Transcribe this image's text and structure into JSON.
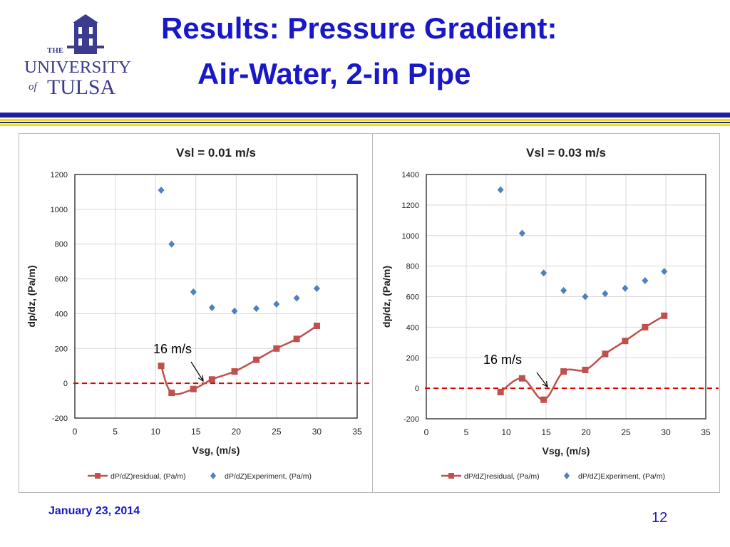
{
  "header": {
    "title_line1": "Results: Pressure Gradient:",
    "title_line2": "Air-Water, 2-in Pipe",
    "logo_text": {
      "the": "THE",
      "university": "UNIVERSITY",
      "of": "of",
      "tulsa": "TULSA"
    }
  },
  "colors": {
    "title": "#1818c8",
    "residual_series": "#c0504d",
    "experiment_series": "#4f81bd",
    "zero_line": "#e00000",
    "logo": "#3b3b8f",
    "rule_blue": "#2020a0",
    "rule_gold": "#f2e600"
  },
  "chart_data": [
    {
      "type": "scatter",
      "title": "Vsl = 0.01 m/s",
      "xlabel": "Vsg, (m/s)",
      "ylabel": "dp/dz, (Pa/m)",
      "xlim": [
        0,
        35
      ],
      "ylim": [
        -200,
        1200
      ],
      "xticks": [
        0,
        5,
        10,
        15,
        20,
        25,
        30,
        35
      ],
      "yticks": [
        -200,
        0,
        200,
        400,
        600,
        800,
        1000,
        1200
      ],
      "grid": true,
      "legend_position": "bottom",
      "series": [
        {
          "name": "dP/dZ)residual, (Pa/m)",
          "style": "line-square",
          "x": [
            10.7,
            12.0,
            14.7,
            17.0,
            19.8,
            22.5,
            25.0,
            27.5,
            30.0
          ],
          "y": [
            100,
            -55,
            -33,
            22,
            68,
            135,
            200,
            255,
            330
          ]
        },
        {
          "name": "dP/dZ)Experiment, (Pa/m)",
          "style": "diamond",
          "x": [
            10.7,
            12.0,
            14.7,
            17.0,
            19.8,
            22.5,
            25.0,
            27.5,
            30.0
          ],
          "y": [
            1110,
            800,
            525,
            435,
            415,
            430,
            455,
            490,
            545
          ]
        }
      ],
      "reference_line": {
        "y": 0,
        "style": "dashed"
      },
      "annotation": {
        "text": "16 m/s",
        "arrow_to": [
          16,
          0
        ]
      }
    },
    {
      "type": "scatter",
      "title": "Vsl = 0.03 m/s",
      "xlabel": "Vsg, (m/s)",
      "ylabel": "dp/dz, (Pa/m)",
      "xlim": [
        0,
        35
      ],
      "ylim": [
        -200,
        1400
      ],
      "xticks": [
        0,
        5,
        10,
        15,
        20,
        25,
        30,
        35
      ],
      "yticks": [
        -200,
        0,
        200,
        400,
        600,
        800,
        1000,
        1200,
        1400
      ],
      "grid": true,
      "legend_position": "bottom",
      "series": [
        {
          "name": "dP/dZ)residual, (Pa/m)",
          "style": "line-square",
          "x": [
            9.3,
            12.0,
            14.7,
            17.2,
            19.9,
            22.4,
            24.9,
            27.4,
            29.8
          ],
          "y": [
            -25,
            65,
            -75,
            110,
            120,
            225,
            310,
            400,
            475
          ]
        },
        {
          "name": "dP/dZ)Experiment, (Pa/m)",
          "style": "diamond",
          "x": [
            9.3,
            12.0,
            14.7,
            17.2,
            19.9,
            22.4,
            24.9,
            27.4,
            29.8
          ],
          "y": [
            1300,
            1015,
            755,
            640,
            600,
            620,
            655,
            705,
            765
          ]
        }
      ],
      "reference_line": {
        "y": 0,
        "style": "dashed"
      },
      "annotation": {
        "text": "16 m/s",
        "arrow_to": [
          15.6,
          0
        ]
      }
    }
  ],
  "footer": {
    "date": "January 23, 2014",
    "page": "12"
  }
}
